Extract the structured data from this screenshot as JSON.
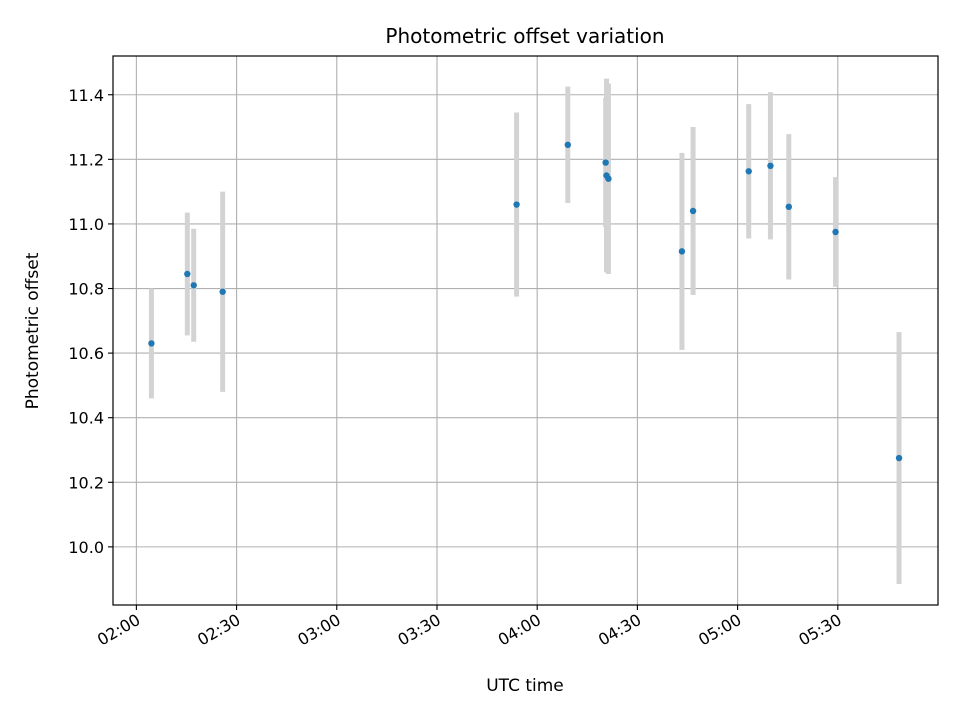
{
  "chart_data": {
    "type": "scatter",
    "title": "Photometric offset variation",
    "xlabel": "UTC time",
    "ylabel": "Photometric offset",
    "x_unit": "UTC time of day",
    "xlim": [
      "01:53",
      "06:00"
    ],
    "ylim": [
      9.82,
      11.52
    ],
    "grid": true,
    "x_ticks": [
      "02:00",
      "02:30",
      "03:00",
      "03:30",
      "04:00",
      "04:30",
      "05:00",
      "05:30"
    ],
    "y_ticks": [
      "10.0",
      "10.2",
      "10.4",
      "10.6",
      "10.8",
      "11.0",
      "11.2",
      "11.4"
    ],
    "y_tick_values": [
      10.0,
      10.2,
      10.4,
      10.6,
      10.8,
      11.0,
      11.2,
      11.4
    ],
    "marker_color": "#1f77b4",
    "errorbar_color": "#d3d3d3",
    "points": [
      {
        "t": "02:04:30",
        "y": 10.63,
        "err": 0.17
      },
      {
        "t": "02:15:15",
        "y": 10.845,
        "err": 0.19
      },
      {
        "t": "02:17:10",
        "y": 10.81,
        "err": 0.175
      },
      {
        "t": "02:25:50",
        "y": 10.79,
        "err": 0.31
      },
      {
        "t": "03:53:50",
        "y": 11.06,
        "err": 0.285
      },
      {
        "t": "04:09:10",
        "y": 11.245,
        "err": 0.18
      },
      {
        "t": "04:20:30",
        "y": 11.19,
        "err": 0.2
      },
      {
        "t": "04:20:45",
        "y": 11.15,
        "err": 0.3
      },
      {
        "t": "04:21:20",
        "y": 11.14,
        "err": 0.295
      },
      {
        "t": "04:43:20",
        "y": 10.915,
        "err": 0.305
      },
      {
        "t": "04:46:40",
        "y": 11.04,
        "err": 0.26
      },
      {
        "t": "05:03:20",
        "y": 11.163,
        "err": 0.208
      },
      {
        "t": "05:09:50",
        "y": 11.18,
        "err": 0.228
      },
      {
        "t": "05:15:20",
        "y": 11.053,
        "err": 0.225
      },
      {
        "t": "05:29:20",
        "y": 10.975,
        "err": 0.17
      },
      {
        "t": "05:48:20",
        "y": 10.275,
        "err": 0.39
      }
    ]
  }
}
